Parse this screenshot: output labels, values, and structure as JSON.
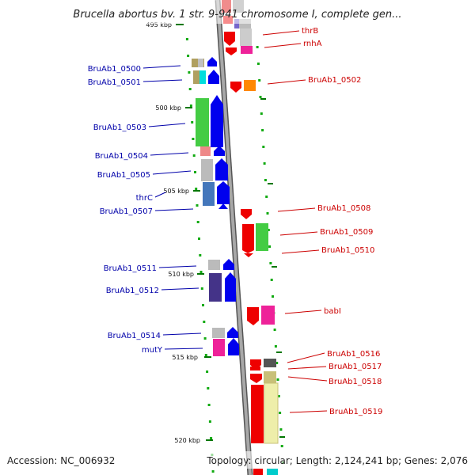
{
  "title": "Brucella abortus bv. 1 str. 9-941 chromosome I, complete gen...",
  "footer": {
    "accession": "Accession: NC_006932",
    "topology": "Topology: circular; Length: 2,124,241 bp; Genes: 2,076"
  },
  "colors": {
    "forward_label": "#0000aa",
    "reverse_label": "#cc0000",
    "backbone": "#888888",
    "tick": "#007700"
  },
  "ticks": [
    {
      "label": "495 kbp",
      "id": "t495"
    },
    {
      "label": "500 kbp",
      "id": "t500"
    },
    {
      "label": "505 kbp",
      "id": "t505"
    },
    {
      "label": "510 kbp",
      "id": "t510"
    },
    {
      "label": "515 kbp",
      "id": "t515"
    },
    {
      "label": "520 kbp",
      "id": "t520"
    }
  ],
  "genes_forward": [
    {
      "label": "BruAb1_0500",
      "id": "g0500"
    },
    {
      "label": "BruAb1_0501",
      "id": "g0501"
    },
    {
      "label": "BruAb1_0503",
      "id": "g0503"
    },
    {
      "label": "BruAb1_0504",
      "id": "g0504"
    },
    {
      "label": "BruAb1_0505",
      "id": "g0505"
    },
    {
      "label": "thrC",
      "id": "gthrC"
    },
    {
      "label": "BruAb1_0507",
      "id": "g0507"
    },
    {
      "label": "BruAb1_0511",
      "id": "g0511"
    },
    {
      "label": "BruAb1_0512",
      "id": "g0512"
    },
    {
      "label": "BruAb1_0514",
      "id": "g0514"
    },
    {
      "label": "mutY",
      "id": "gmutY"
    }
  ],
  "genes_reverse": [
    {
      "label": "thrB",
      "id": "gthrB"
    },
    {
      "label": "rnhA",
      "id": "grnhA"
    },
    {
      "label": "BruAb1_0502",
      "id": "g0502"
    },
    {
      "label": "BruAb1_0508",
      "id": "g0508"
    },
    {
      "label": "BruAb1_0509",
      "id": "g0509"
    },
    {
      "label": "BruAb1_0510",
      "id": "g0510"
    },
    {
      "label": "babI",
      "id": "gbabI"
    },
    {
      "label": "BruAb1_0516",
      "id": "g0516"
    },
    {
      "label": "BruAb1_0517",
      "id": "g0517"
    },
    {
      "label": "BruAb1_0518",
      "id": "g0518"
    },
    {
      "label": "BruAb1_0519",
      "id": "g0519"
    }
  ]
}
